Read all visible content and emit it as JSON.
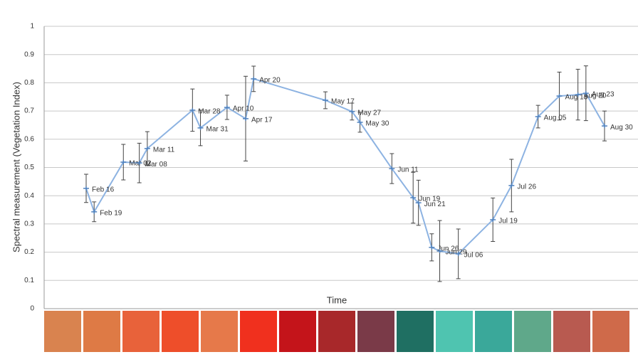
{
  "chart_data": {
    "type": "line",
    "y_label": "Spectral measurement (Vegetation Index)",
    "x_label": "Time",
    "categories": [
      "Feb 16",
      "Feb 19",
      "Mar 02",
      "Mar 08",
      "Mar 11",
      "Mar 28",
      "Mar 31",
      "Apr 10",
      "Apr 17",
      "Apr 20",
      "May 17",
      "May 27",
      "May 30",
      "Jun 11",
      "Jun 19",
      "Jun 21",
      "Jun 26",
      "Jun 29",
      "Jul 06",
      "Jul 19",
      "Jul 26",
      "Aug 05",
      "Aug 13",
      "Aug 20",
      "Aug 23",
      "Aug 30"
    ],
    "values": [
      0.426,
      0.343,
      0.519,
      0.516,
      0.567,
      0.703,
      0.64,
      0.713,
      0.673,
      0.814,
      0.738,
      0.698,
      0.66,
      0.496,
      0.393,
      0.375,
      0.217,
      0.204,
      0.194,
      0.315,
      0.436,
      0.68,
      0.753,
      0.758,
      0.763,
      0.647
    ],
    "errors": [
      0.05,
      0.035,
      0.063,
      0.07,
      0.06,
      0.075,
      0.063,
      0.043,
      0.15,
      0.045,
      0.03,
      0.03,
      0.035,
      0.053,
      0.09,
      0.08,
      0.048,
      0.108,
      0.088,
      0.077,
      0.093,
      0.04,
      0.085,
      0.09,
      0.097,
      0.053
    ],
    "color": "#8db3e2",
    "ylim": [
      0,
      1
    ],
    "yticks": [
      0,
      0.1,
      0.2,
      0.3,
      0.4,
      0.5,
      0.6,
      0.7,
      0.8,
      0.9,
      1
    ],
    "grid": true
  }
}
